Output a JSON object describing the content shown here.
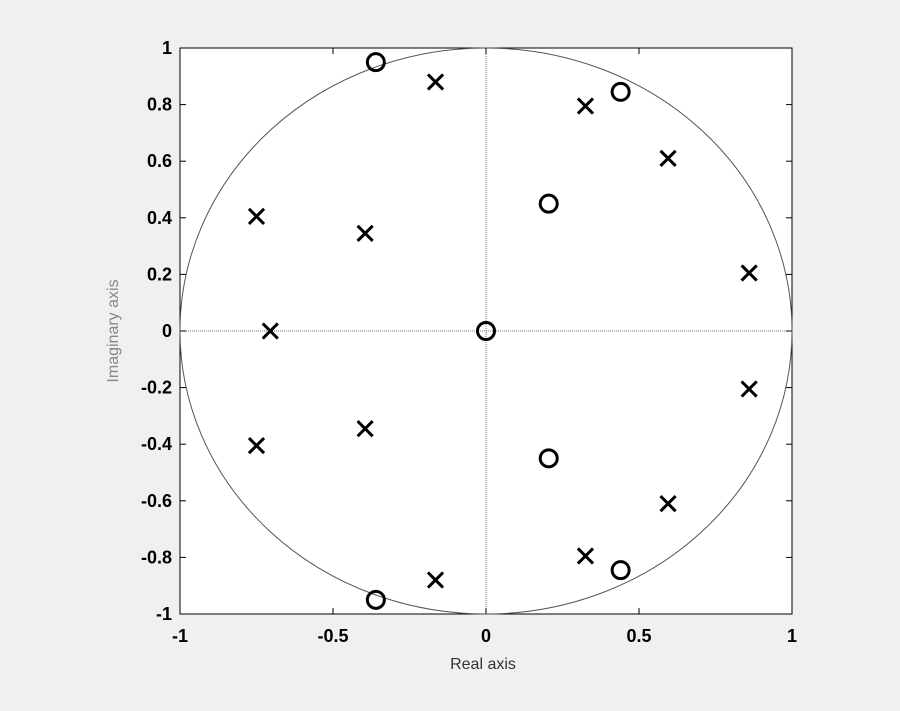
{
  "chart_data": {
    "type": "scatter",
    "title": "",
    "xlabel": "Real axis",
    "ylabel": "Imaginary axis",
    "xlim": [
      -1,
      1
    ],
    "ylim": [
      -1,
      1
    ],
    "xticks": [
      -1,
      -0.5,
      0,
      0.5,
      1
    ],
    "xtick_labels": [
      "-1",
      "-0.5",
      "0",
      "0.5",
      "1"
    ],
    "yticks": [
      -1,
      -0.8,
      -0.6,
      -0.4,
      -0.2,
      0,
      0.2,
      0.4,
      0.6,
      0.8,
      1
    ],
    "ytick_labels": [
      "-1",
      "-0.8",
      "-0.6",
      "-0.4",
      "-0.2",
      "0",
      "0.2",
      "0.4",
      "0.6",
      "0.8",
      "1"
    ],
    "grid": false,
    "unit_circle": true,
    "series": [
      {
        "marker": "o",
        "points": [
          [
            0,
            0
          ],
          [
            -0.36,
            0.95
          ],
          [
            -0.36,
            -0.95
          ],
          [
            0.44,
            0.845
          ],
          [
            0.44,
            -0.845
          ],
          [
            0.205,
            0.45
          ],
          [
            0.205,
            -0.45
          ]
        ]
      },
      {
        "marker": "x",
        "points": [
          [
            -0.165,
            0.88
          ],
          [
            -0.165,
            -0.88
          ],
          [
            0.325,
            0.795
          ],
          [
            0.325,
            -0.795
          ],
          [
            0.595,
            0.61
          ],
          [
            0.595,
            -0.61
          ],
          [
            0.86,
            0.205
          ],
          [
            0.86,
            -0.205
          ],
          [
            -0.75,
            0.405
          ],
          [
            -0.75,
            -0.405
          ],
          [
            -0.395,
            0.345
          ],
          [
            -0.395,
            -0.345
          ],
          [
            -0.705,
            0
          ]
        ]
      }
    ],
    "colors": {
      "background": "#f0f0f0",
      "plot_area": "#ffffff",
      "markers": "#000000",
      "circle": "#555555",
      "ylabel": "#888888",
      "xlabel": "#333333"
    }
  }
}
